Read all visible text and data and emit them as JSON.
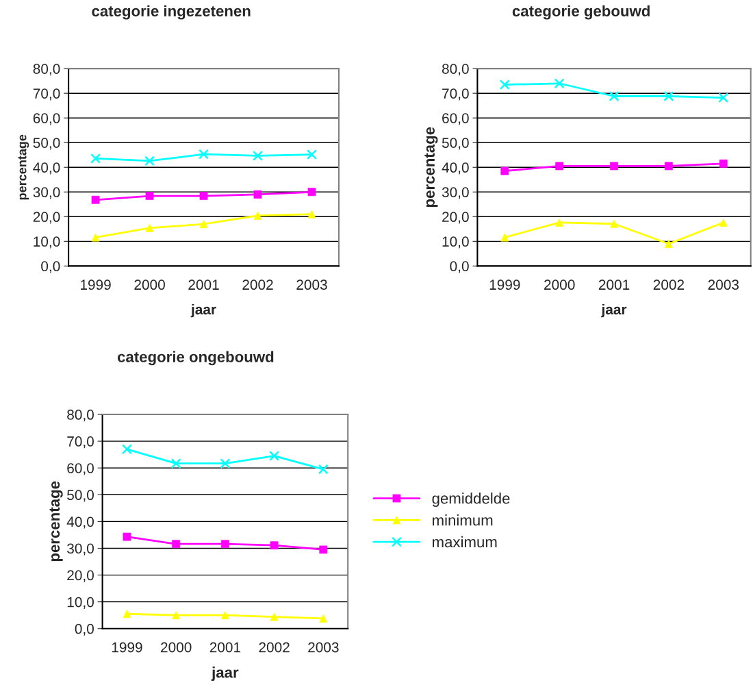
{
  "chart_data": [
    {
      "type": "line",
      "title": "categorie ingezetenen",
      "xlabel": "jaar",
      "ylabel": "percentage",
      "categories": [
        "1999",
        "2000",
        "2001",
        "2002",
        "2003"
      ],
      "ylim": [
        0,
        80
      ],
      "yticks": [
        {
          "value": 0,
          "label": "0,0"
        },
        {
          "value": 10,
          "label": "10,0"
        },
        {
          "value": 20,
          "label": "20,0"
        },
        {
          "value": 30,
          "label": "30,0"
        },
        {
          "value": 40,
          "label": "40,0"
        },
        {
          "value": 50,
          "label": "50,0"
        },
        {
          "value": 60,
          "label": "60,0"
        },
        {
          "value": 70,
          "label": "70,0"
        },
        {
          "value": 80,
          "label": "80,0"
        }
      ],
      "grid": "y",
      "legend": false,
      "series": [
        {
          "color": "#ff00ff",
          "marker": "square",
          "values": [
            26.8,
            28.4,
            28.4,
            29.0,
            30.0
          ]
        },
        {
          "color": "#ffff00",
          "marker": "triangle",
          "values": [
            11.6,
            15.4,
            17.0,
            20.4,
            21.0
          ]
        },
        {
          "color": "#00ffff",
          "marker": "cross",
          "values": [
            43.6,
            42.6,
            45.3,
            44.7,
            45.2
          ]
        }
      ]
    },
    {
      "type": "line",
      "title": "categorie gebouwd",
      "xlabel": "jaar",
      "ylabel": "percentage",
      "categories": [
        "1999",
        "2000",
        "2001",
        "2002",
        "2003"
      ],
      "ylim": [
        0,
        80
      ],
      "yticks": [
        {
          "value": 0,
          "label": "0,0"
        },
        {
          "value": 10,
          "label": "10,0"
        },
        {
          "value": 20,
          "label": "20,0"
        },
        {
          "value": 30,
          "label": "30,0"
        },
        {
          "value": 40,
          "label": "40,0"
        },
        {
          "value": 50,
          "label": "50,0"
        },
        {
          "value": 60,
          "label": "60,0"
        },
        {
          "value": 70,
          "label": "70,0"
        },
        {
          "value": 80,
          "label": "80,0"
        }
      ],
      "grid": "y",
      "legend": false,
      "series": [
        {
          "color": "#ff00ff",
          "marker": "square",
          "values": [
            38.5,
            40.5,
            40.5,
            40.5,
            41.5
          ]
        },
        {
          "color": "#ffff00",
          "marker": "triangle",
          "values": [
            11.6,
            17.6,
            17.1,
            9.0,
            17.6
          ]
        },
        {
          "color": "#00ffff",
          "marker": "cross",
          "values": [
            73.5,
            74.0,
            68.8,
            68.8,
            68.2
          ]
        }
      ]
    },
    {
      "type": "line",
      "title": "categorie ongebouwd",
      "xlabel": "jaar",
      "ylabel": "percentage",
      "categories": [
        "1999",
        "2000",
        "2001",
        "2002",
        "2003"
      ],
      "ylim": [
        0,
        80
      ],
      "yticks": [
        {
          "value": 0,
          "label": "0,0"
        },
        {
          "value": 10,
          "label": "10,0"
        },
        {
          "value": 20,
          "label": "20,0"
        },
        {
          "value": 30,
          "label": "30,0"
        },
        {
          "value": 40,
          "label": "40,0"
        },
        {
          "value": 50,
          "label": "50,0"
        },
        {
          "value": 60,
          "label": "60,0"
        },
        {
          "value": 70,
          "label": "70,0"
        },
        {
          "value": 80,
          "label": "80,0"
        }
      ],
      "grid": "y",
      "legend": "right",
      "series": [
        {
          "name": "gemiddelde",
          "color": "#ff00ff",
          "marker": "square",
          "values": [
            34.3,
            31.6,
            31.6,
            31.1,
            29.5
          ]
        },
        {
          "name": "minimum",
          "color": "#ffff00",
          "marker": "triangle",
          "values": [
            5.5,
            5.0,
            5.0,
            4.4,
            3.8
          ]
        },
        {
          "name": "maximum",
          "color": "#00ffff",
          "marker": "cross",
          "values": [
            67.0,
            61.7,
            61.7,
            64.5,
            59.5
          ]
        }
      ]
    }
  ]
}
